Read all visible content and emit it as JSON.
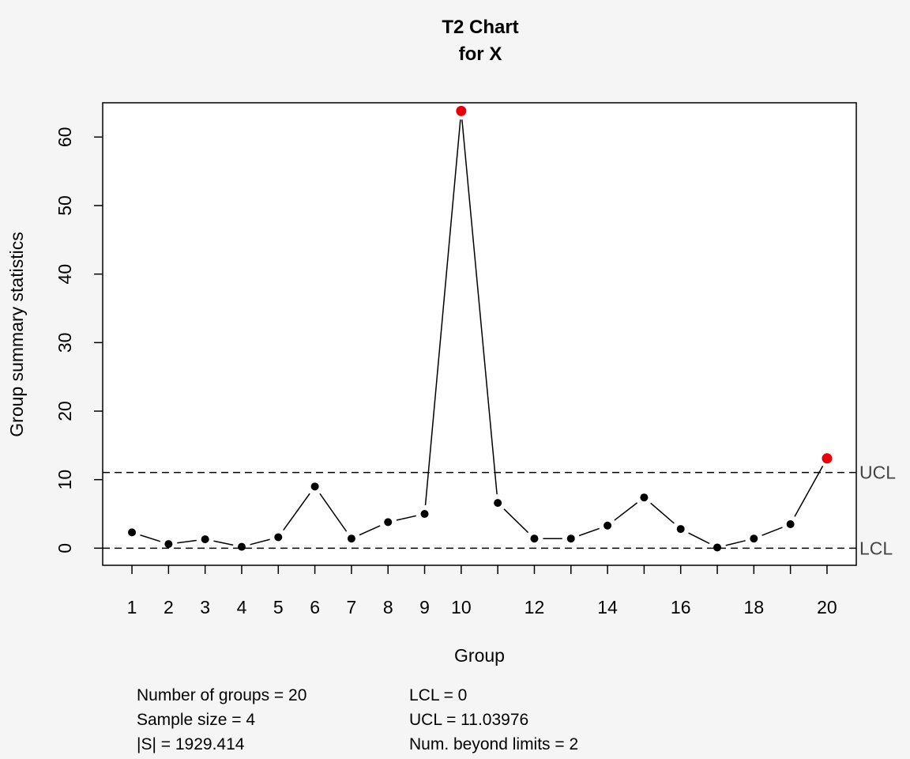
{
  "chart_data": {
    "type": "line",
    "title": "T2 Chart",
    "subtitle": "for X",
    "xlabel": "Group",
    "ylabel": "Group summary statistics",
    "x": [
      1,
      2,
      3,
      4,
      5,
      6,
      7,
      8,
      9,
      10,
      11,
      12,
      13,
      14,
      15,
      16,
      17,
      18,
      19,
      20
    ],
    "values": [
      2.3,
      0.6,
      1.3,
      0.2,
      1.6,
      9.0,
      1.4,
      3.8,
      5.0,
      63.8,
      6.6,
      1.4,
      1.4,
      3.3,
      7.4,
      2.8,
      0.1,
      1.4,
      3.5,
      13.1
    ],
    "beyond_limits": [
      10,
      20
    ],
    "xlim": [
      0.2,
      20.8
    ],
    "ylim": [
      -2.5,
      65
    ],
    "x_tick_labels": [
      "1",
      "2",
      "3",
      "4",
      "5",
      "6",
      "7",
      "8",
      "9",
      "10",
      "12",
      "14",
      "16",
      "18",
      "20"
    ],
    "x_tick_label_positions": [
      1,
      2,
      3,
      4,
      5,
      6,
      7,
      8,
      9,
      10,
      12,
      14,
      16,
      18,
      20
    ],
    "x_tick_positions": [
      1,
      2,
      3,
      4,
      5,
      6,
      7,
      8,
      9,
      10,
      11,
      12,
      13,
      14,
      15,
      16,
      17,
      18,
      19,
      20
    ],
    "y_ticks": [
      0,
      10,
      20,
      30,
      40,
      50,
      60
    ],
    "y_tick_labels": [
      "0",
      "10",
      "20",
      "30",
      "40",
      "50",
      "60"
    ],
    "limits": [
      {
        "name": "UCL",
        "value": 11.03976
      },
      {
        "name": "LCL",
        "value": 0
      }
    ],
    "grid": false,
    "colors": {
      "point": "#000000",
      "beyond_limits_point": "#e8000b",
      "line": "#000000",
      "limit_line": "#000000",
      "limit_label": "#444444",
      "background": "#f5f5f5",
      "plot_background": "#ffffff"
    }
  },
  "stats": {
    "left": [
      "Number of groups = 20",
      "Sample size = 4",
      "|S| = 1929.414"
    ],
    "right": [
      "LCL = 0",
      "UCL = 11.03976",
      "Num. beyond limits = 2"
    ]
  }
}
